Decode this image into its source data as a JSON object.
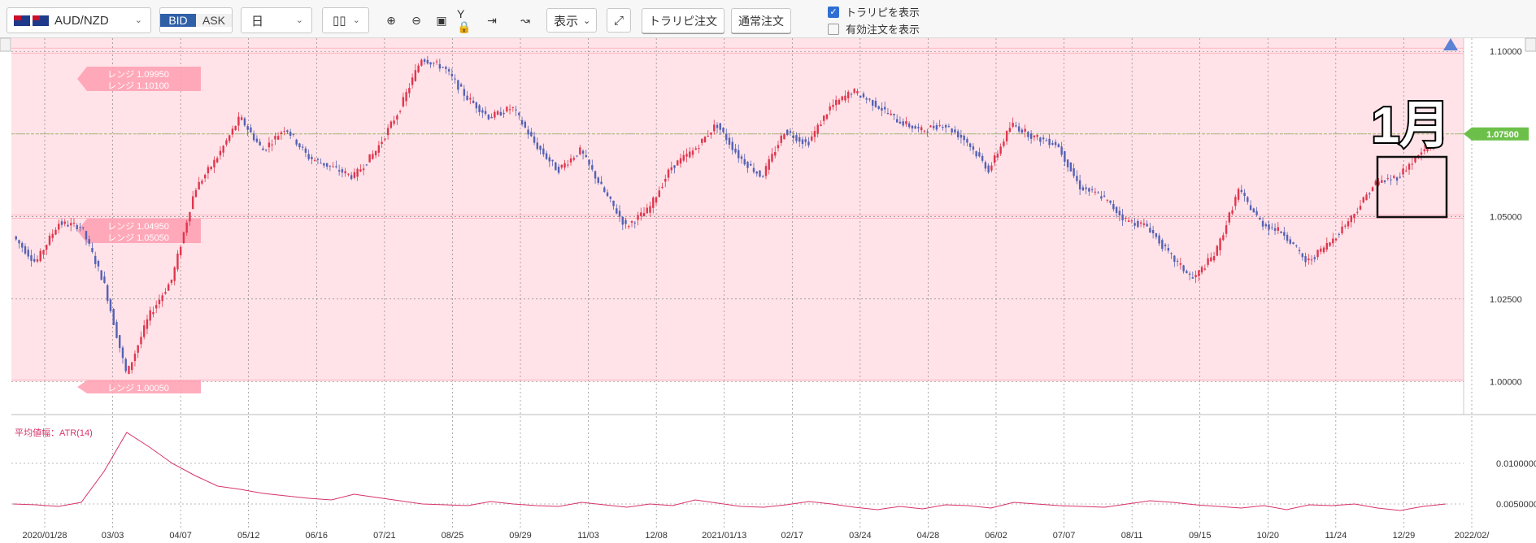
{
  "toolbar": {
    "pair": "AUD/NZD",
    "bid": "BID",
    "ask": "ASK",
    "timeframe": "日",
    "display": "表示",
    "trarip_order": "トラリピ注文",
    "normal_order": "通常注文",
    "show_trarip": "トラリピを表示",
    "show_valid_orders": "有効注文を表示",
    "icons": [
      "candle-type-icon",
      "zoom-in-icon",
      "zoom-out-icon",
      "fit-icon",
      "y-lock-icon",
      "jump-end-icon",
      "add-indicator-icon",
      "expand-icon"
    ]
  },
  "chart_data": [
    {
      "type": "candlestick",
      "title": "",
      "price_axis": {
        "min": 0.99,
        "max": 1.104,
        "ticks": [
          "1.10000",
          "1.07500",
          "1.05000",
          "1.02500",
          "1.00000"
        ]
      },
      "current_price": "1.07500",
      "x_labels": [
        "2020/01/28",
        "03/03",
        "04/07",
        "05/12",
        "06/16",
        "07/21",
        "08/25",
        "09/29",
        "11/03",
        "12/08",
        "2021/01/13",
        "02/17",
        "03/24",
        "04/28",
        "06/02",
        "07/07",
        "08/11",
        "09/15",
        "10/20",
        "11/24",
        "12/29",
        "2022/02/"
      ],
      "close_path": [
        [
          "2020/01/28",
          1.044
        ],
        [
          "02/11",
          1.036
        ],
        [
          "02/25",
          1.048
        ],
        [
          "03/03",
          1.047
        ],
        [
          "03/12",
          1.03
        ],
        [
          "03/19",
          1.002
        ],
        [
          "03/26",
          1.02
        ],
        [
          "04/07",
          1.031
        ],
        [
          "04/21",
          1.058
        ],
        [
          "05/05",
          1.068
        ],
        [
          "05/12",
          1.08
        ],
        [
          "05/26",
          1.07
        ],
        [
          "06/09",
          1.077
        ],
        [
          "06/16",
          1.068
        ],
        [
          "06/30",
          1.065
        ],
        [
          "07/14",
          1.062
        ],
        [
          "07/21",
          1.07
        ],
        [
          "08/04",
          1.082
        ],
        [
          "08/18",
          1.098
        ],
        [
          "08/25",
          1.095
        ],
        [
          "09/08",
          1.086
        ],
        [
          "09/22",
          1.08
        ],
        [
          "09/29",
          1.083
        ],
        [
          "10/13",
          1.072
        ],
        [
          "10/27",
          1.064
        ],
        [
          "11/03",
          1.07
        ],
        [
          "11/17",
          1.058
        ],
        [
          "12/01",
          1.047
        ],
        [
          "12/08",
          1.052
        ],
        [
          "12/22",
          1.065
        ],
        [
          "2021/01/05",
          1.07
        ],
        [
          "01/13",
          1.078
        ],
        [
          "01/27",
          1.068
        ],
        [
          "02/10",
          1.062
        ],
        [
          "02/17",
          1.076
        ],
        [
          "03/03",
          1.072
        ],
        [
          "03/17",
          1.083
        ],
        [
          "03/24",
          1.088
        ],
        [
          "04/07",
          1.084
        ],
        [
          "04/21",
          1.079
        ],
        [
          "04/28",
          1.076
        ],
        [
          "05/12",
          1.078
        ],
        [
          "05/26",
          1.073
        ],
        [
          "06/02",
          1.064
        ],
        [
          "06/16",
          1.078
        ],
        [
          "06/30",
          1.074
        ],
        [
          "07/07",
          1.072
        ],
        [
          "07/21",
          1.059
        ],
        [
          "08/04",
          1.056
        ],
        [
          "08/11",
          1.049
        ],
        [
          "08/25",
          1.047
        ],
        [
          "09/08",
          1.038
        ],
        [
          "09/15",
          1.031
        ],
        [
          "09/29",
          1.039
        ],
        [
          "10/13",
          1.058
        ],
        [
          "10/20",
          1.048
        ],
        [
          "11/03",
          1.045
        ],
        [
          "11/17",
          1.036
        ],
        [
          "11/24",
          1.042
        ],
        [
          "12/08",
          1.05
        ],
        [
          "12/29",
          1.06
        ],
        [
          "2022/01/12",
          1.062
        ],
        [
          "2022/01/26",
          1.069
        ],
        [
          "2022/02/",
          1.074
        ]
      ],
      "range_labels": [
        "レンジ 1.09950",
        "レンジ 1.10100",
        "レンジ 1.04950",
        "レンジ 1.05050",
        "レンジ 1.00050"
      ],
      "annotation": "1月"
    },
    {
      "type": "line",
      "title": "平均値幅：ATR(14)",
      "y_ticks": [
        "0.0100000",
        "0.0050000"
      ],
      "series": [
        {
          "values": [
            0.005,
            0.0049,
            0.0047,
            0.0052,
            0.009,
            0.0138,
            0.012,
            0.01,
            0.0085,
            0.0072,
            0.0068,
            0.0063,
            0.006,
            0.0057,
            0.0055,
            0.0062,
            0.0058,
            0.0054,
            0.005,
            0.0049,
            0.0048,
            0.0053,
            0.005,
            0.0048,
            0.0047,
            0.0052,
            0.0049,
            0.0046,
            0.005,
            0.0048,
            0.0055,
            0.0051,
            0.0047,
            0.0046,
            0.0049,
            0.0053,
            0.005,
            0.0046,
            0.0043,
            0.0047,
            0.0044,
            0.0049,
            0.0048,
            0.0045,
            0.0052,
            0.005,
            0.0048,
            0.0047,
            0.0046,
            0.005,
            0.0054,
            0.0052,
            0.0049,
            0.0047,
            0.0045,
            0.0048,
            0.0043,
            0.0049,
            0.0048,
            0.005,
            0.0045,
            0.0042,
            0.0047,
            0.005
          ]
        }
      ]
    }
  ]
}
